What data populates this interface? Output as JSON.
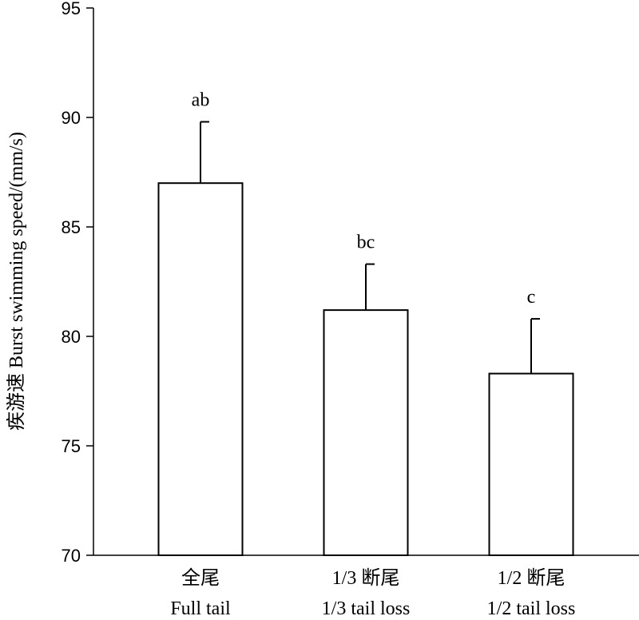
{
  "chart_data": {
    "type": "bar",
    "categories": [
      {
        "line1": "全尾",
        "line2": "Full tail"
      },
      {
        "line1": "1/3 断尾",
        "line2": "1/3 tail loss"
      },
      {
        "line1": "1/2 断尾",
        "line2": "1/2 tail loss"
      }
    ],
    "values": [
      87.0,
      81.2,
      78.3
    ],
    "errors": [
      2.8,
      2.1,
      2.5
    ],
    "significance": [
      "ab",
      "bc",
      "c"
    ],
    "ylabel": "疾游速 Burst swimming speed/(mm/s)",
    "xlabel": "",
    "ylim": [
      70,
      95
    ],
    "yticks": [
      70,
      75,
      80,
      85,
      90,
      95
    ],
    "grid": false,
    "bar_fill": "#ffffff",
    "bar_stroke": "#000000"
  }
}
